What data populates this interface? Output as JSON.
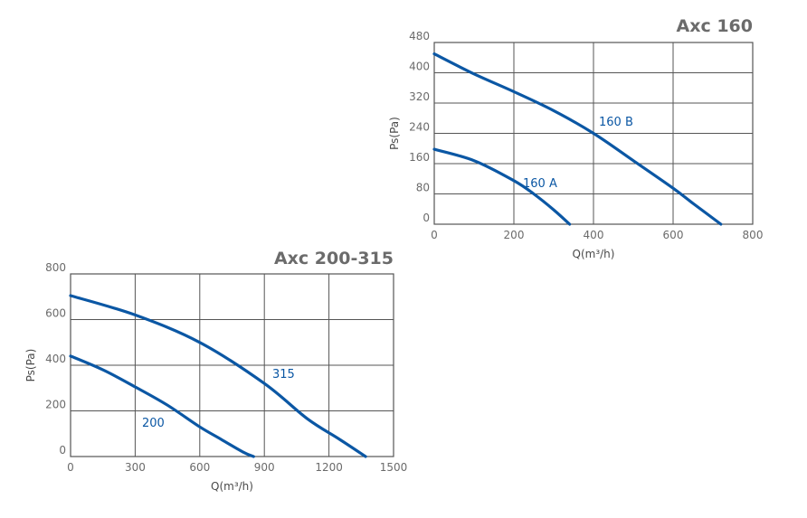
{
  "chart_data": [
    {
      "type": "line",
      "title": "Axc 160",
      "xlabel": "Q(m³/h)",
      "ylabel": "Ps(Pa)",
      "xlim": [
        0,
        800
      ],
      "ylim": [
        0,
        480
      ],
      "xticks": [
        0,
        200,
        400,
        600,
        800
      ],
      "yticks": [
        0,
        80,
        160,
        240,
        320,
        400,
        480
      ],
      "grid": true,
      "line_color": "#0b57a4",
      "series": [
        {
          "name": "160 A",
          "x": [
            0,
            100,
            200,
            250,
            300,
            340
          ],
          "y": [
            198,
            168,
            115,
            80,
            38,
            0
          ]
        },
        {
          "name": "160 B",
          "x": [
            0,
            100,
            200,
            300,
            400,
            500,
            600,
            650,
            720
          ],
          "y": [
            450,
            397,
            350,
            300,
            240,
            168,
            95,
            55,
            0
          ]
        }
      ]
    },
    {
      "type": "line",
      "title": "Axc 200-315",
      "xlabel": "Q(m³/h)",
      "ylabel": "Ps(Pa)",
      "xlim": [
        0,
        1500
      ],
      "ylim": [
        0,
        800
      ],
      "xticks": [
        0,
        300,
        600,
        900,
        1200,
        1500
      ],
      "yticks": [
        0,
        200,
        400,
        600,
        800
      ],
      "grid": true,
      "line_color": "#0b57a4",
      "series": [
        {
          "name": "200",
          "x": [
            0,
            150,
            300,
            450,
            600,
            700,
            800,
            850
          ],
          "y": [
            440,
            380,
            305,
            225,
            130,
            75,
            20,
            0
          ]
        },
        {
          "name": "315",
          "x": [
            0,
            300,
            600,
            900,
            1100,
            1250,
            1370
          ],
          "y": [
            705,
            620,
            500,
            320,
            165,
            75,
            0
          ]
        }
      ]
    }
  ]
}
